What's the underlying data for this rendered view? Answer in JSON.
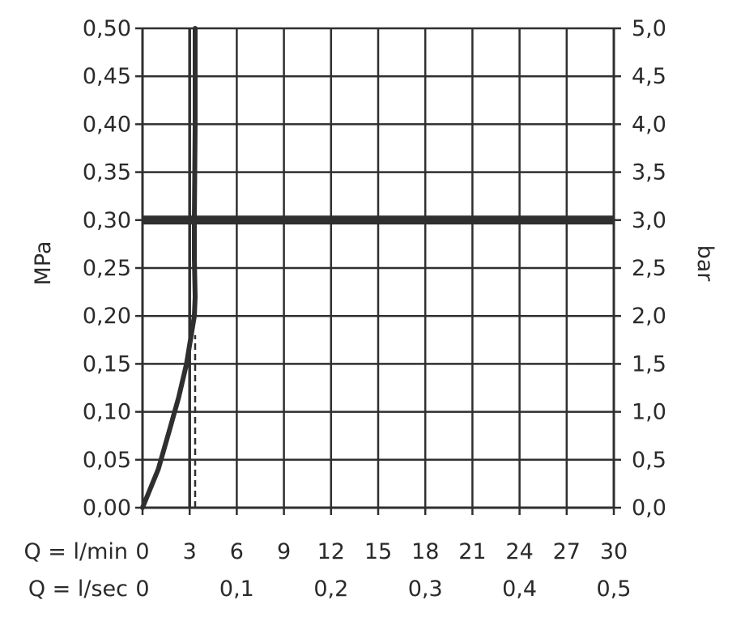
{
  "chart_data": {
    "type": "line",
    "y_left": {
      "label": "MPa",
      "ticks": [
        "0,00",
        "0,05",
        "0,10",
        "0,15",
        "0,20",
        "0,25",
        "0,30",
        "0,35",
        "0,40",
        "0,45",
        "0,50"
      ],
      "range": [
        0,
        0.5
      ]
    },
    "y_right": {
      "label": "bar",
      "ticks": [
        "0,0",
        "0,5",
        "1,0",
        "1,5",
        "2,0",
        "2,5",
        "3,0",
        "3,5",
        "4,0",
        "4,5",
        "5,0"
      ],
      "range": [
        0,
        5
      ]
    },
    "x_primary": {
      "label": "Q = l/min",
      "ticks": [
        "0",
        "3",
        "6",
        "9",
        "12",
        "15",
        "18",
        "21",
        "24",
        "27",
        "30"
      ],
      "range": [
        0,
        30
      ]
    },
    "x_secondary": {
      "label": "Q = l/sec",
      "ticks": [
        "0",
        "0,1",
        "0,2",
        "0,3",
        "0,4",
        "0,5"
      ],
      "tick_values_lmin": [
        0,
        6,
        12,
        18,
        24,
        30
      ]
    },
    "grid": true,
    "series": [
      {
        "style": "solid-thick",
        "points": [
          [
            0,
            0
          ],
          [
            1.0,
            0.04
          ],
          [
            1.7,
            0.08
          ],
          [
            2.3,
            0.115
          ],
          [
            2.8,
            0.15
          ],
          [
            3.1,
            0.18
          ],
          [
            3.3,
            0.2
          ],
          [
            3.35,
            0.22
          ],
          [
            3.3,
            0.26
          ],
          [
            3.3,
            0.3
          ],
          [
            3.35,
            0.4
          ],
          [
            3.35,
            0.5
          ]
        ]
      }
    ],
    "reference_lines": [
      {
        "orientation": "horizontal",
        "y_mpa": 0.3,
        "style": "heavy"
      },
      {
        "orientation": "vertical",
        "x_lmin": 3,
        "style": "thin"
      },
      {
        "orientation": "vertical",
        "x_lmin": 3.35,
        "y_from_mpa": 0,
        "y_to_mpa": 0.18,
        "style": "dashed"
      }
    ],
    "colors": {
      "line": "#2f2f2f",
      "grid": "#2f2f2f",
      "text": "#2a2a2a"
    }
  }
}
